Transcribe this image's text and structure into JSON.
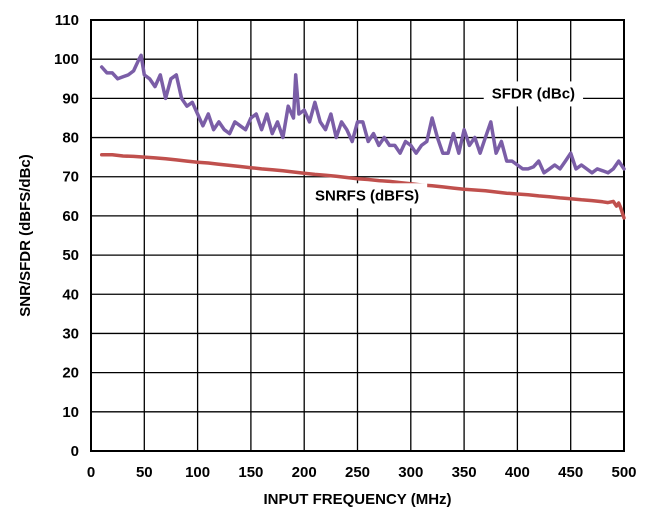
{
  "chart_data": {
    "type": "line",
    "title": "",
    "xlabel": "INPUT FREQUENCY (MHz)",
    "ylabel": "SNR/SFDR (dBFS/dBc)",
    "xlim": [
      0,
      500
    ],
    "ylim": [
      0,
      110
    ],
    "xticks": [
      0,
      50,
      100,
      150,
      200,
      250,
      300,
      350,
      400,
      450,
      500
    ],
    "yticks": [
      0,
      10,
      20,
      30,
      40,
      50,
      60,
      70,
      80,
      90,
      100,
      110
    ],
    "grid": true,
    "legend": "none",
    "series": [
      {
        "name": "SFDR (dBc)",
        "color": "#7b5ea7",
        "x": [
          10,
          15,
          20,
          25,
          30,
          35,
          40,
          45,
          47,
          50,
          55,
          60,
          65,
          70,
          75,
          80,
          85,
          90,
          95,
          100,
          105,
          110,
          115,
          120,
          125,
          130,
          135,
          140,
          145,
          150,
          155,
          160,
          165,
          170,
          175,
          180,
          185,
          190,
          192,
          195,
          200,
          205,
          210,
          215,
          220,
          225,
          230,
          235,
          240,
          245,
          250,
          255,
          260,
          265,
          270,
          275,
          280,
          285,
          290,
          295,
          300,
          305,
          310,
          315,
          320,
          325,
          330,
          335,
          340,
          345,
          350,
          355,
          360,
          365,
          370,
          375,
          380,
          385,
          390,
          395,
          400,
          405,
          410,
          415,
          420,
          425,
          430,
          435,
          440,
          445,
          450,
          455,
          460,
          465,
          470,
          475,
          480,
          485,
          490,
          495,
          500
        ],
        "y": [
          98,
          96.5,
          96.5,
          95,
          95.5,
          96,
          97,
          100,
          101,
          96,
          95,
          93,
          96,
          90,
          95,
          96,
          90,
          88,
          89,
          86,
          83,
          86,
          82,
          84,
          82,
          81,
          84,
          83,
          82,
          85,
          86,
          82,
          86,
          81,
          84,
          80,
          88,
          85,
          96,
          86,
          87,
          84,
          89,
          84,
          82,
          86,
          80,
          84,
          82,
          79,
          84,
          84,
          79,
          81,
          78,
          80,
          78,
          78,
          76,
          79,
          78,
          76,
          78,
          79,
          85,
          80,
          76,
          76,
          81,
          76,
          82,
          78,
          80,
          76,
          80,
          84,
          76,
          79,
          74,
          74,
          73,
          72,
          72,
          72.5,
          74,
          71,
          72,
          73,
          72,
          74,
          76,
          72,
          73,
          72,
          71,
          72,
          71.5,
          71,
          72,
          74,
          72
        ]
      },
      {
        "name": "SNRFS (dBFS)",
        "color": "#c0504d",
        "x": [
          10,
          20,
          30,
          40,
          50,
          60,
          70,
          80,
          90,
          100,
          110,
          120,
          130,
          140,
          150,
          160,
          170,
          180,
          190,
          200,
          210,
          220,
          230,
          240,
          250,
          260,
          270,
          280,
          290,
          300,
          310,
          320,
          330,
          340,
          350,
          360,
          370,
          380,
          390,
          400,
          410,
          420,
          430,
          440,
          450,
          460,
          470,
          480,
          485,
          490,
          493,
          495,
          497,
          500
        ],
        "y": [
          75.6,
          75.6,
          75.3,
          75.2,
          75,
          74.8,
          74.6,
          74.3,
          74,
          73.7,
          73.5,
          73.2,
          72.9,
          72.6,
          72.3,
          72,
          71.8,
          71.5,
          71.2,
          70.9,
          70.6,
          70.4,
          70.1,
          69.8,
          69.5,
          69.3,
          69,
          68.8,
          68.5,
          68.2,
          67.9,
          67.7,
          67.4,
          67.1,
          66.8,
          66.6,
          66.4,
          66.1,
          65.8,
          65.6,
          65.4,
          65.1,
          64.9,
          64.6,
          64.4,
          64.1,
          63.9,
          63.6,
          63.4,
          63.7,
          62.5,
          63.3,
          62,
          59.5
        ]
      }
    ],
    "annotations": [
      {
        "text": "SFDR (dBc)",
        "x": 415,
        "y": 91,
        "anchor": "middle"
      },
      {
        "text": "SNRFS (dBFS)",
        "x": 259,
        "y": 65,
        "anchor": "middle"
      }
    ]
  }
}
